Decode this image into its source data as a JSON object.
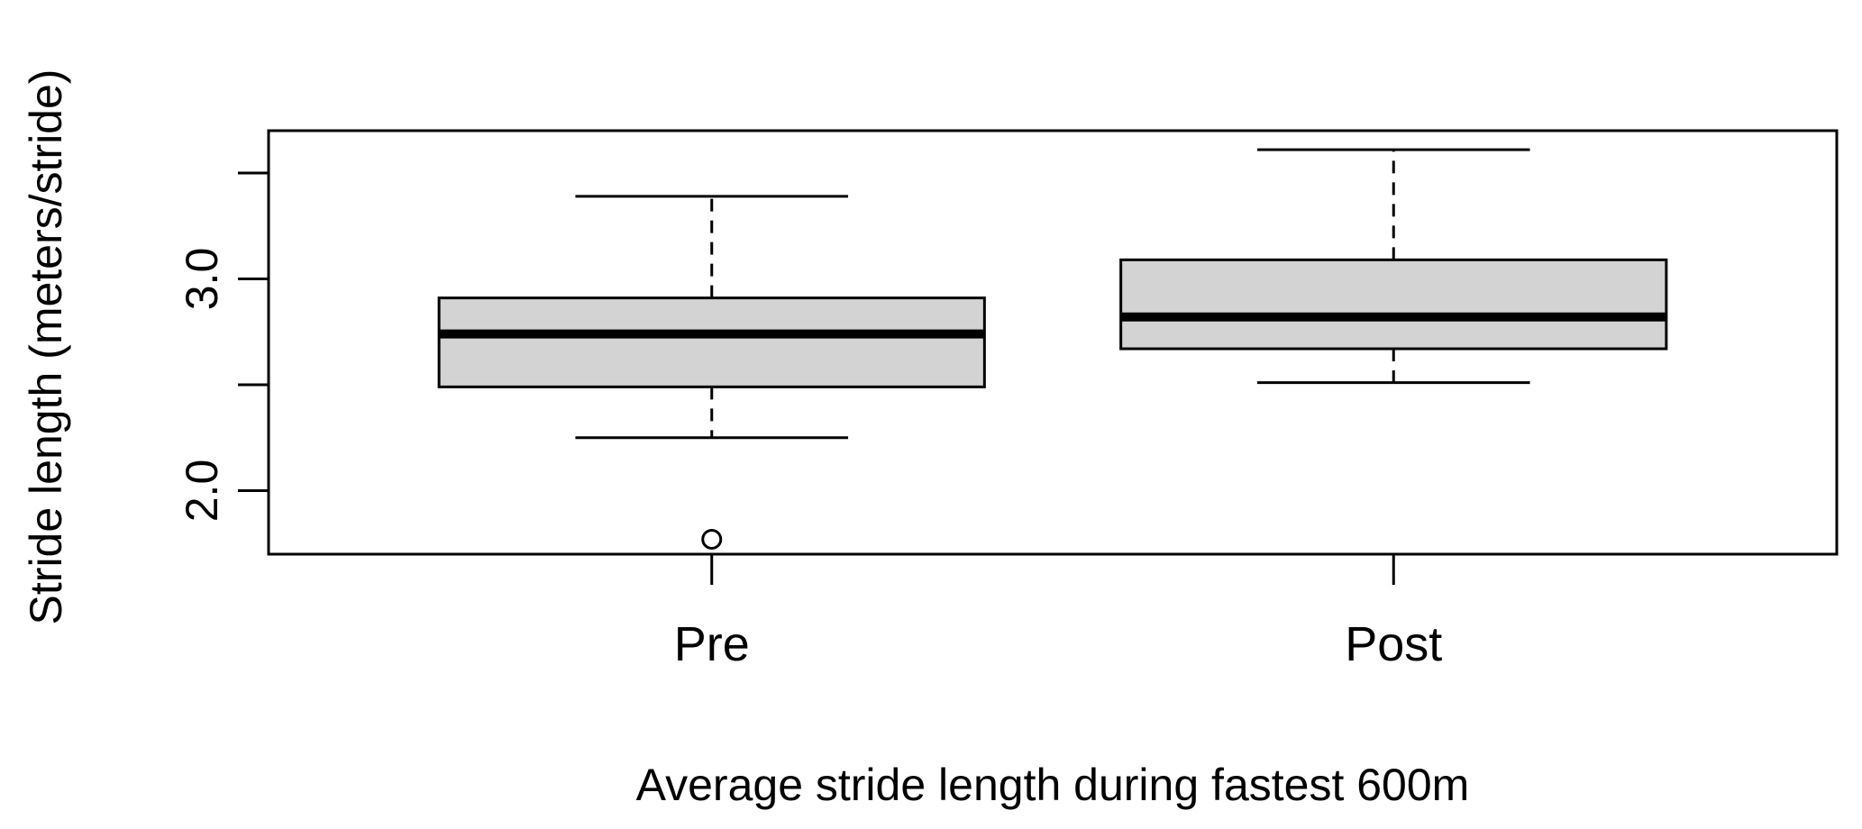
{
  "chart_data": {
    "type": "boxplot",
    "xlabel": "Average stride length during fastest 600m",
    "ylabel": "Stride length (meters/stride)",
    "categories": [
      "Pre",
      "Post"
    ],
    "ylim": [
      1.7,
      3.7
    ],
    "yticks": [
      2.0,
      2.5,
      3.0,
      3.5
    ],
    "ytick_labels": [
      "2.0",
      "",
      "3.0",
      ""
    ],
    "grid": false,
    "legend": "none",
    "colors": {
      "box_fill": "#d3d3d3",
      "stroke": "#000000"
    },
    "boxes": [
      {
        "category": "Pre",
        "whisker_low": 2.25,
        "q1": 2.49,
        "median": 2.74,
        "q3": 2.91,
        "whisker_high": 3.39,
        "outliers": [
          1.77
        ]
      },
      {
        "category": "Post",
        "whisker_low": 2.51,
        "q1": 2.67,
        "median": 2.82,
        "q3": 3.09,
        "whisker_high": 3.61,
        "outliers": []
      }
    ]
  }
}
